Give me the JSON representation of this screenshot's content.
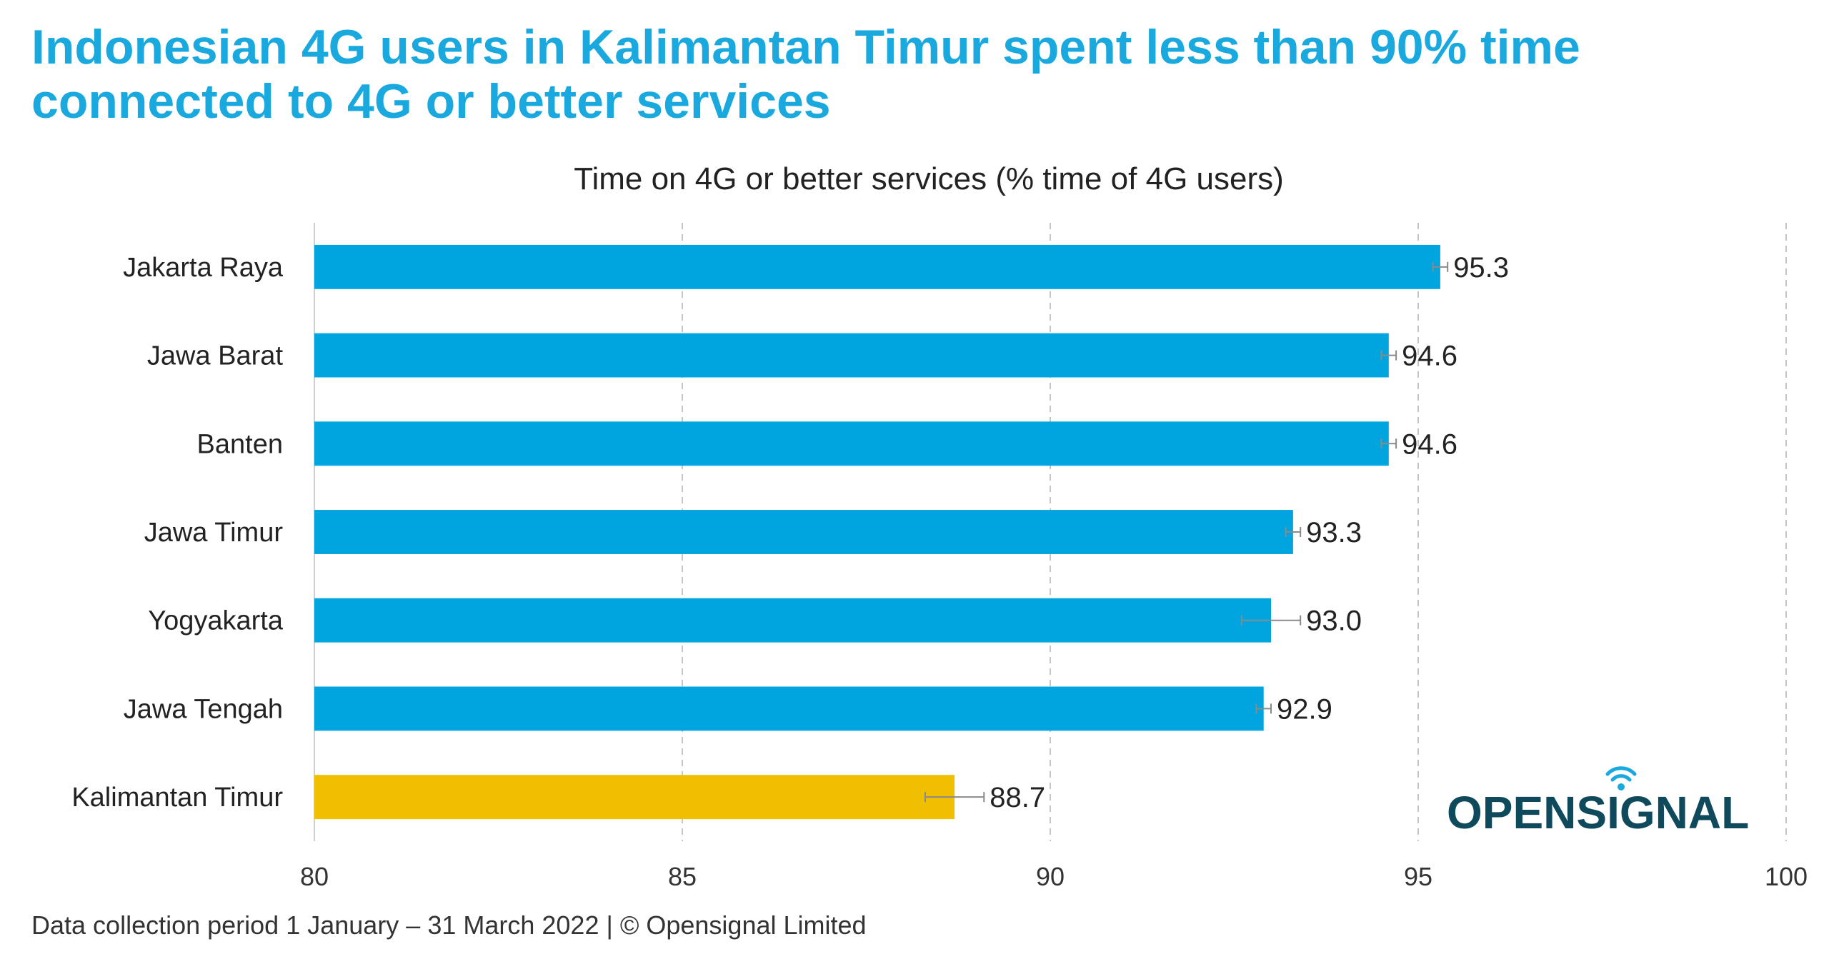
{
  "header": {
    "title": "Indonesian 4G users in Kalimantan Timur spent less than 90% time connected to 4G or better services"
  },
  "footer": {
    "note": "Data collection period 1 January – 31 March 2022  |  © Opensignal Limited"
  },
  "logo": {
    "text": "OPENSIGNAL",
    "color": "#0E4A5C",
    "accent": "#19A9DF",
    "icon": "signal-icon"
  },
  "chart_data": {
    "type": "bar",
    "orientation": "horizontal",
    "title": "Time on 4G or better services (% time of 4G users)",
    "categories": [
      "Jakarta Raya",
      "Jawa Barat",
      "Banten",
      "Jawa Timur",
      "Yogyakarta",
      "Jawa Tengah",
      "Kalimantan Timur"
    ],
    "values": [
      95.3,
      94.6,
      94.6,
      93.3,
      93.0,
      92.9,
      88.7
    ],
    "value_labels": [
      "95.3",
      "94.6",
      "94.6",
      "93.3",
      "93.0",
      "92.9",
      "88.7"
    ],
    "error_low": [
      95.2,
      94.5,
      94.5,
      93.2,
      92.6,
      92.8,
      88.3
    ],
    "error_high": [
      95.4,
      94.7,
      94.7,
      93.4,
      93.4,
      93.0,
      89.1
    ],
    "colors": [
      "#00A5DF",
      "#00A5DF",
      "#00A5DF",
      "#00A5DF",
      "#00A5DF",
      "#00A5DF",
      "#F0BF00"
    ],
    "xlim": [
      80,
      100
    ],
    "xticks": [
      80,
      85,
      90,
      95,
      100
    ],
    "xtick_labels": [
      "80",
      "85",
      "90",
      "95",
      "100"
    ],
    "grid": true,
    "legend": "none"
  }
}
